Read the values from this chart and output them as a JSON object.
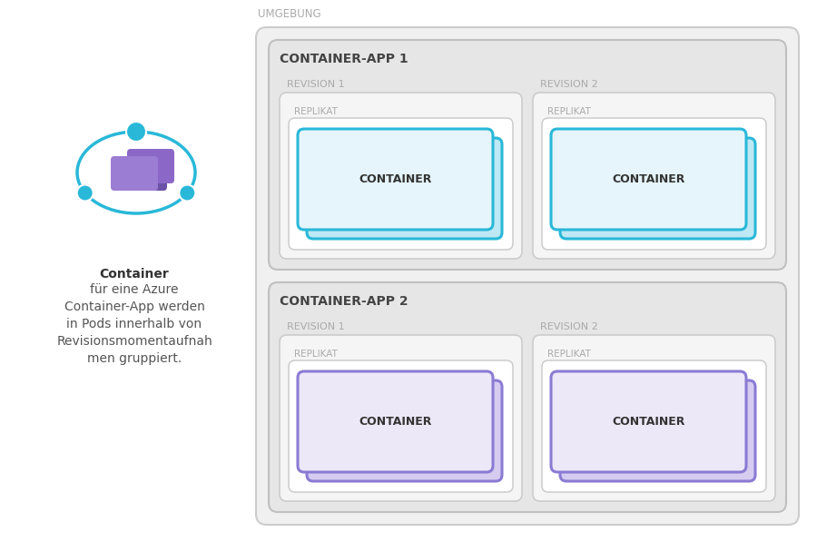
{
  "bg_color": "#ffffff",
  "umgebung_label": "UMGEBUNG",
  "container_app1_label": "CONTAINER-APP 1",
  "container_app2_label": "CONTAINER-APP 2",
  "cyan_border": "#29B8D8",
  "cyan_fill": "#E6F5FB",
  "cyan_shadow_fill": "#BFE8F5",
  "purple_border": "#8B7BD4",
  "purple_fill": "#EDE8F8",
  "purple_shadow_fill": "#D5CCF0",
  "umgebung_bg": "#f0f0f0",
  "app_bg": "#e6e6e6",
  "revision_bg": "#f5f5f5",
  "replikat_bg": "#ffffff",
  "border_color": "#cccccc",
  "text_gray": "#aaaaaa",
  "text_dark": "#444444",
  "text_container": "#333333"
}
